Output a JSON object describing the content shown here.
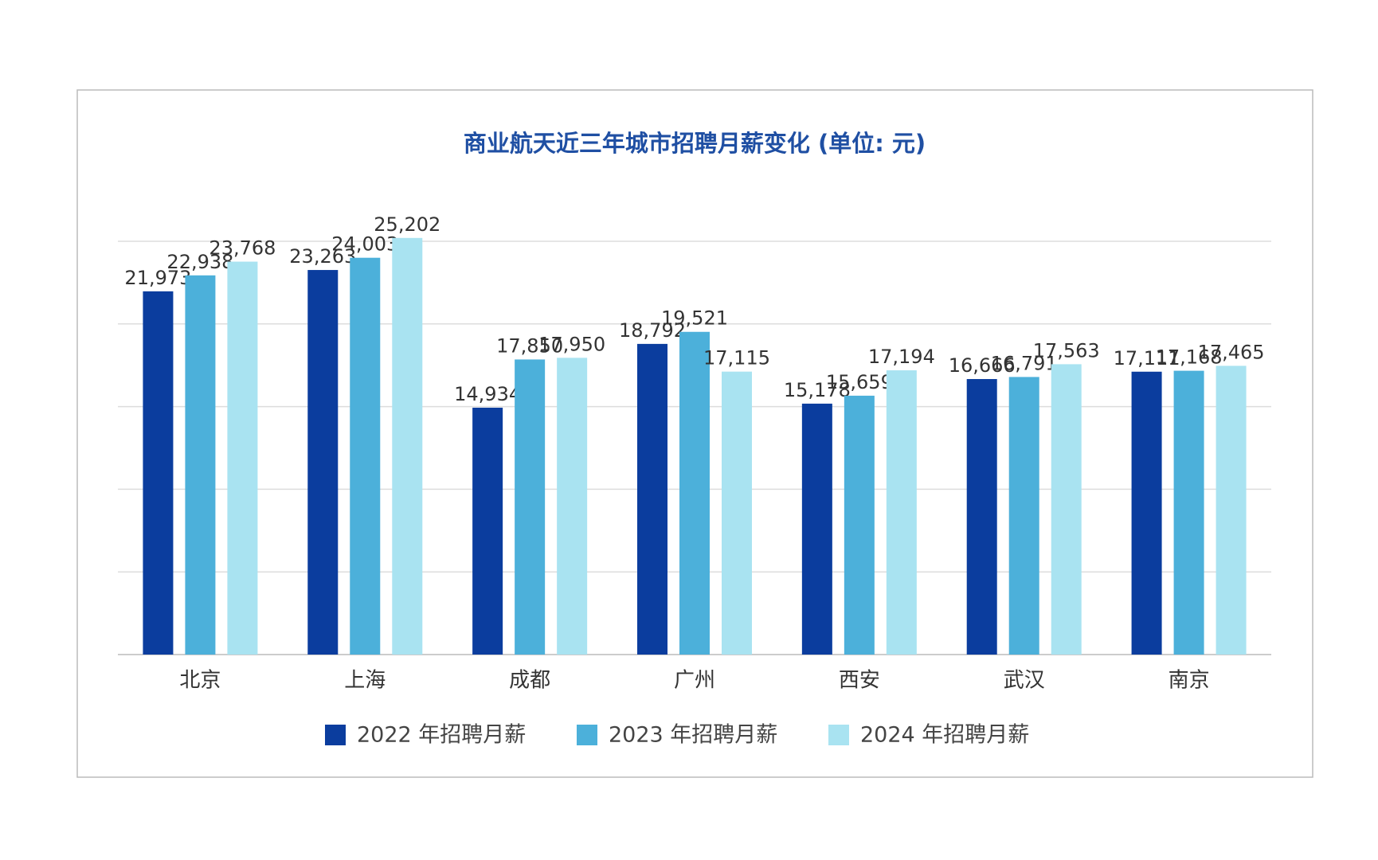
{
  "chart_data": {
    "type": "bar",
    "title": "商业航天近三年城市招聘月薪变化 (单位: 元)",
    "categories": [
      "北京",
      "上海",
      "成都",
      "广州",
      "西安",
      "武汉",
      "南京"
    ],
    "series": [
      {
        "name": "2022 年招聘月薪",
        "color": "#0b3d9e",
        "values": [
          21973,
          23263,
          14934,
          18792,
          15178,
          16666,
          17111
        ],
        "value_labels": [
          "21,973",
          "23,263",
          "14,934",
          "18,792",
          "15,178",
          "16,666",
          "17,111"
        ]
      },
      {
        "name": "2023 年招聘月薪",
        "color": "#4cb0da",
        "values": [
          22938,
          24003,
          17850,
          19521,
          15659,
          16791,
          17168
        ],
        "value_labels": [
          "22,938",
          "24,003",
          "17,850",
          "19,521",
          "15,659",
          "16,791",
          "17,168"
        ]
      },
      {
        "name": "2024 年招聘月薪",
        "color": "#a9e3f1",
        "values": [
          23768,
          25202,
          17950,
          17115,
          17194,
          17563,
          17465
        ],
        "value_labels": [
          "23,768",
          "25,202",
          "17,950",
          "17,115",
          "17,194",
          "17,563",
          "17,465"
        ]
      }
    ],
    "ylim": [
      0,
      25000
    ],
    "yticks": [
      0,
      5000,
      10000,
      15000,
      20000,
      25000
    ],
    "grid": true
  }
}
